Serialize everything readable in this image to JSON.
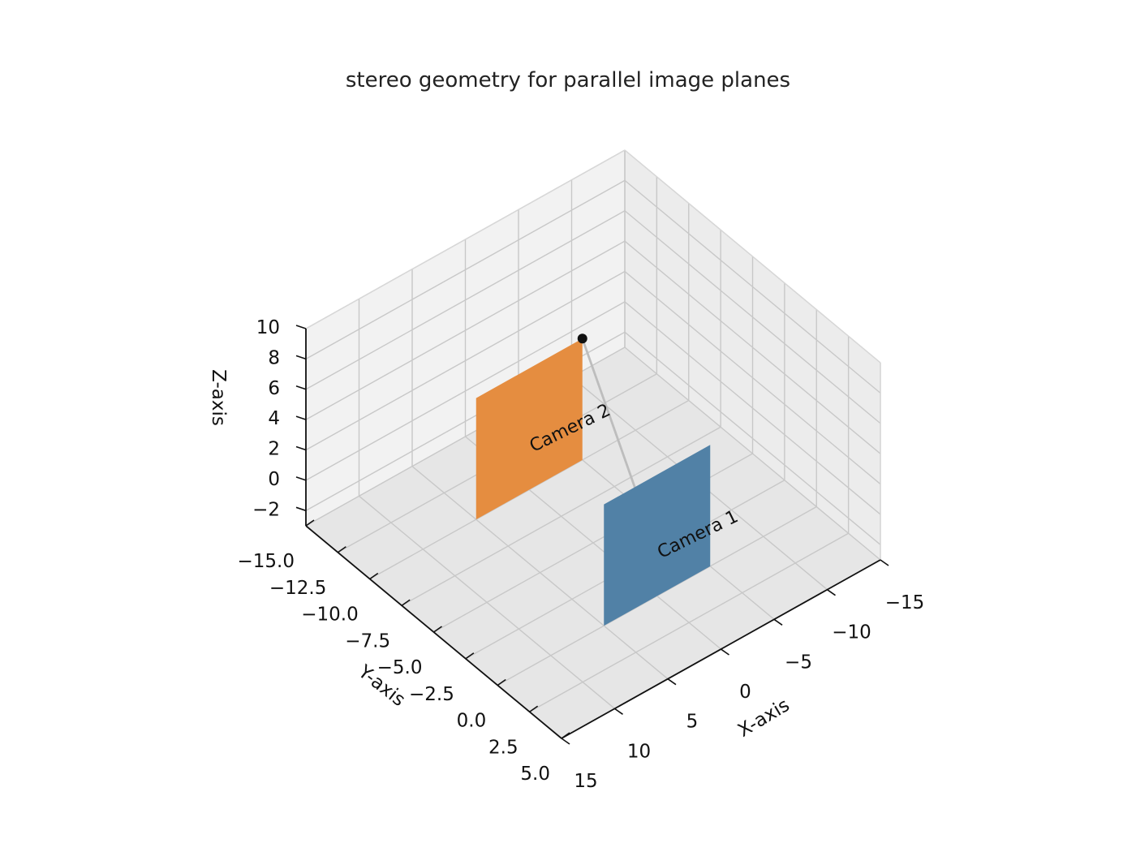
{
  "chart_data": {
    "type": "scatter",
    "projection": "3d",
    "title": "stereo geometry for parallel image planes",
    "xlabel": "X-axis",
    "ylabel": "Y-axis",
    "zlabel": "Z-axis",
    "xlim": [
      -15,
      15
    ],
    "ylim": [
      -15,
      5
    ],
    "zlim": [
      -3,
      10
    ],
    "xticks": [
      -15,
      -10,
      -5,
      0,
      5,
      10,
      15
    ],
    "yticks": [
      -15.0,
      -12.5,
      -10.0,
      -7.5,
      -5.0,
      -2.5,
      0.0,
      2.5,
      5.0
    ],
    "zticks": [
      -2,
      0,
      2,
      4,
      6,
      8,
      10
    ],
    "xtick_labels": [
      "−15",
      "−10",
      "−5",
      "0",
      "5",
      "10",
      "15"
    ],
    "ytick_labels": [
      "−15.0",
      "−12.5",
      "−10.0",
      "−7.5",
      "−5.0",
      "−2.5",
      "0.0",
      "2.5",
      "5.0"
    ],
    "ztick_labels": [
      "−2",
      "0",
      "2",
      "4",
      "6",
      "8",
      "10"
    ],
    "grid": true,
    "view": {
      "elev": 30,
      "azim": 60
    },
    "planes": [
      {
        "name": "Camera 1",
        "x": [
          -5,
          5
        ],
        "y": 0,
        "z": [
          -3,
          5
        ],
        "color": "#5181a6"
      },
      {
        "name": "Camera 2",
        "x": [
          -5,
          5
        ],
        "y": -10,
        "z": [
          -3,
          5
        ],
        "color": "#e58d40"
      }
    ],
    "cameras": [
      {
        "label": "Camera 1",
        "x": 0,
        "y": 0,
        "z": 0
      },
      {
        "label": "Camera 2",
        "x": 0,
        "y": -10,
        "z": 0
      }
    ],
    "point": {
      "x": -5,
      "y": -10,
      "z": 5,
      "color": "#111111"
    },
    "rays": [
      {
        "from": [
          -5,
          -10,
          5
        ],
        "to": [
          0,
          0,
          0
        ]
      },
      {
        "from": [
          -5,
          -10,
          5
        ],
        "to": [
          0,
          -10,
          0
        ]
      }
    ]
  }
}
